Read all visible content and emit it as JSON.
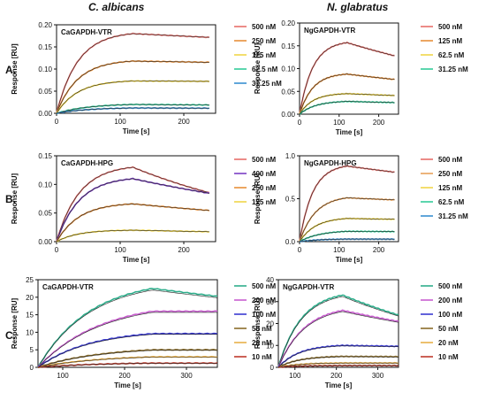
{
  "figure": {
    "columns": [
      "C. albicans",
      "N. glabratus"
    ],
    "rows": [
      "A.",
      "B.",
      "C."
    ]
  },
  "chart_data": [
    {
      "type": "line",
      "panel": "A-left",
      "title": "CaGAPDH-VTR",
      "xlabel": "Time [s]",
      "ylabel": "Response [RU]",
      "xlim": [
        0,
        250
      ],
      "ylim": [
        0,
        0.2
      ],
      "xticks": [
        "0",
        "100",
        "200"
      ],
      "yticks": [
        "0.00",
        "0.05",
        "0.10",
        "0.15",
        "0.20"
      ],
      "assoc_end": 120,
      "t_end": 240,
      "series": [
        {
          "name": "500 nM",
          "color": "#e8706b",
          "plateau": 0.18,
          "k": 0.03,
          "d": 0.0004,
          "fit_scale": 1.0
        },
        {
          "name": "250 nM",
          "color": "#e8903a",
          "plateau": 0.118,
          "k": 0.03,
          "d": 0.0002,
          "fit_scale": 1.0
        },
        {
          "name": "125 nM",
          "color": "#f0d64a",
          "plateau": 0.073,
          "k": 0.03,
          "d": 0.0001,
          "fit_scale": 1.0
        },
        {
          "name": "62.5 nM",
          "color": "#33cc99",
          "plateau": 0.02,
          "k": 0.02,
          "d": 0.0005,
          "fit_scale": 1.0
        },
        {
          "name": "31.25 nM",
          "color": "#3a8fd0",
          "plateau": 0.012,
          "k": 0.02,
          "d": 0.0003,
          "fit_scale": 1.0
        }
      ]
    },
    {
      "type": "line",
      "panel": "A-right",
      "title": "NgGAPDH-VTR",
      "xlabel": "Time [s]",
      "ylabel": "Response [RU]",
      "xlim": [
        0,
        250
      ],
      "ylim": [
        0,
        0.2
      ],
      "xticks": [
        "0",
        "100",
        "200"
      ],
      "yticks": [
        "0.00",
        "0.05",
        "0.10",
        "0.15",
        "0.20"
      ],
      "assoc_end": 120,
      "t_end": 240,
      "series": [
        {
          "name": "500 nM",
          "color": "#e8706b",
          "plateau": 0.157,
          "k": 0.03,
          "d": 0.0017,
          "fit_scale": 1.0
        },
        {
          "name": "125 nM",
          "color": "#e8903a",
          "plateau": 0.088,
          "k": 0.03,
          "d": 0.0012,
          "fit_scale": 1.0
        },
        {
          "name": "62.5 nM",
          "color": "#f0d64a",
          "plateau": 0.045,
          "k": 0.03,
          "d": 0.0008,
          "fit_scale": 1.0
        },
        {
          "name": "31.25 nM",
          "color": "#33cc99",
          "plateau": 0.028,
          "k": 0.025,
          "d": 0.0008,
          "fit_scale": 1.0
        }
      ]
    },
    {
      "type": "line",
      "panel": "B-left",
      "title": "CaGAPDH-HPG",
      "xlabel": "Time [s]",
      "ylabel": "Response [RU]",
      "xlim": [
        0,
        250
      ],
      "ylim": [
        0,
        0.15
      ],
      "xticks": [
        "0",
        "100",
        "200"
      ],
      "yticks": [
        "0.00",
        "0.05",
        "0.10",
        "0.15"
      ],
      "assoc_end": 120,
      "t_end": 240,
      "series": [
        {
          "name": "500 nM",
          "color": "#e8706b",
          "plateau": 0.13,
          "k": 0.028,
          "d": 0.0035,
          "fit_scale": 1.0
        },
        {
          "name": "400 nM",
          "color": "#7b3fc4",
          "plateau": 0.11,
          "k": 0.028,
          "d": 0.0022,
          "fit_scale": 1.0
        },
        {
          "name": "250 nM",
          "color": "#e8903a",
          "plateau": 0.066,
          "k": 0.028,
          "d": 0.0016,
          "fit_scale": 1.0
        },
        {
          "name": "125 nM",
          "color": "#f0d64a",
          "plateau": 0.02,
          "k": 0.03,
          "d": 0.0012,
          "fit_scale": 1.0
        }
      ]
    },
    {
      "type": "line",
      "panel": "B-right",
      "title": "NgGAPDH-HPG",
      "xlabel": "Time [s]",
      "ylabel": "Response [RU]",
      "xlim": [
        0,
        250
      ],
      "ylim": [
        0,
        1.0
      ],
      "xticks": [
        "0",
        "100",
        "200"
      ],
      "yticks": [
        "0.0",
        "0.5",
        "1.0"
      ],
      "assoc_end": 120,
      "t_end": 240,
      "series": [
        {
          "name": "500 nM",
          "color": "#e8706b",
          "plateau": 0.88,
          "k": 0.03,
          "d": 0.0007,
          "fit_scale": 1.0
        },
        {
          "name": "250 nM",
          "color": "#e8a25a",
          "plateau": 0.51,
          "k": 0.025,
          "d": 0.0004,
          "fit_scale": 1.0
        },
        {
          "name": "125 nM",
          "color": "#f0d64a",
          "plateau": 0.27,
          "k": 0.025,
          "d": 0.0003,
          "fit_scale": 1.0
        },
        {
          "name": "62.5 nM",
          "color": "#33cc99",
          "plateau": 0.12,
          "k": 0.02,
          "d": 0.0002,
          "fit_scale": 1.0
        },
        {
          "name": "31.25 nM",
          "color": "#3a8fd0",
          "plateau": 0.03,
          "k": 0.02,
          "d": 0.0002,
          "fit_scale": 1.0
        }
      ]
    },
    {
      "type": "line",
      "panel": "C-left",
      "title": "CaGAPDH-VTR",
      "xlabel": "Time [s]",
      "ylabel": "Response [RU]",
      "xlim": [
        60,
        350
      ],
      "ylim": [
        0,
        25
      ],
      "xticks": [
        "100",
        "200",
        "300"
      ],
      "yticks": [
        "0",
        "5",
        "10",
        "15",
        "20",
        "25"
      ],
      "t_start": 60,
      "assoc_end": 245,
      "t_end": 350,
      "series": [
        {
          "name": "500 nM",
          "color": "#2fae8c",
          "plateau": 22.5,
          "k": 0.012,
          "d": 0.001,
          "fit_scale": 0.98
        },
        {
          "name": "200 nM",
          "color": "#c95fd0",
          "plateau": 16.0,
          "k": 0.01,
          "d": 0.0,
          "fit_scale": 0.98
        },
        {
          "name": "100 nM",
          "color": "#3a3ad0",
          "plateau": 9.6,
          "k": 0.012,
          "d": 0.0,
          "fit_scale": 0.98
        },
        {
          "name": "50 nM",
          "color": "#8a6d2a",
          "plateau": 5.0,
          "k": 0.01,
          "d": 0.0,
          "fit_scale": 0.97
        },
        {
          "name": "20 nM",
          "color": "#e8b04a",
          "plateau": 3.0,
          "k": 0.01,
          "d": 0.0,
          "fit_scale": 0.97
        },
        {
          "name": "10 nM",
          "color": "#c0392b",
          "plateau": 1.2,
          "k": 0.01,
          "d": 0.0,
          "fit_scale": 0.97
        }
      ]
    },
    {
      "type": "line",
      "panel": "C-right",
      "title": "NgGAPDH-VTR",
      "xlabel": "Time [s]",
      "ylabel": "Response [RU]",
      "xlim": [
        60,
        350
      ],
      "ylim": [
        0,
        40
      ],
      "xticks": [
        "100",
        "200",
        "300"
      ],
      "yticks": [
        "0",
        "10",
        "20",
        "30",
        "40"
      ],
      "t_start": 60,
      "assoc_end": 215,
      "t_end": 350,
      "series": [
        {
          "name": "500 nM",
          "color": "#2fae8c",
          "plateau": 33.0,
          "k": 0.018,
          "d": 0.0024,
          "fit_scale": 0.98
        },
        {
          "name": "200 nM",
          "color": "#c95fd0",
          "plateau": 26.0,
          "k": 0.016,
          "d": 0.0016,
          "fit_scale": 0.98
        },
        {
          "name": "100 nM",
          "color": "#3a3ad0",
          "plateau": 10.0,
          "k": 0.02,
          "d": 0.0003,
          "fit_scale": 0.98
        },
        {
          "name": "50 nM",
          "color": "#8a6d2a",
          "plateau": 5.0,
          "k": 0.02,
          "d": 0.0002,
          "fit_scale": 0.97
        },
        {
          "name": "20 nM",
          "color": "#e8b04a",
          "plateau": 2.0,
          "k": 0.02,
          "d": 0.0,
          "fit_scale": 0.97
        },
        {
          "name": "10 nM",
          "color": "#c0392b",
          "plateau": 0.8,
          "k": 0.02,
          "d": 0.0,
          "fit_scale": 0.97
        }
      ]
    }
  ]
}
